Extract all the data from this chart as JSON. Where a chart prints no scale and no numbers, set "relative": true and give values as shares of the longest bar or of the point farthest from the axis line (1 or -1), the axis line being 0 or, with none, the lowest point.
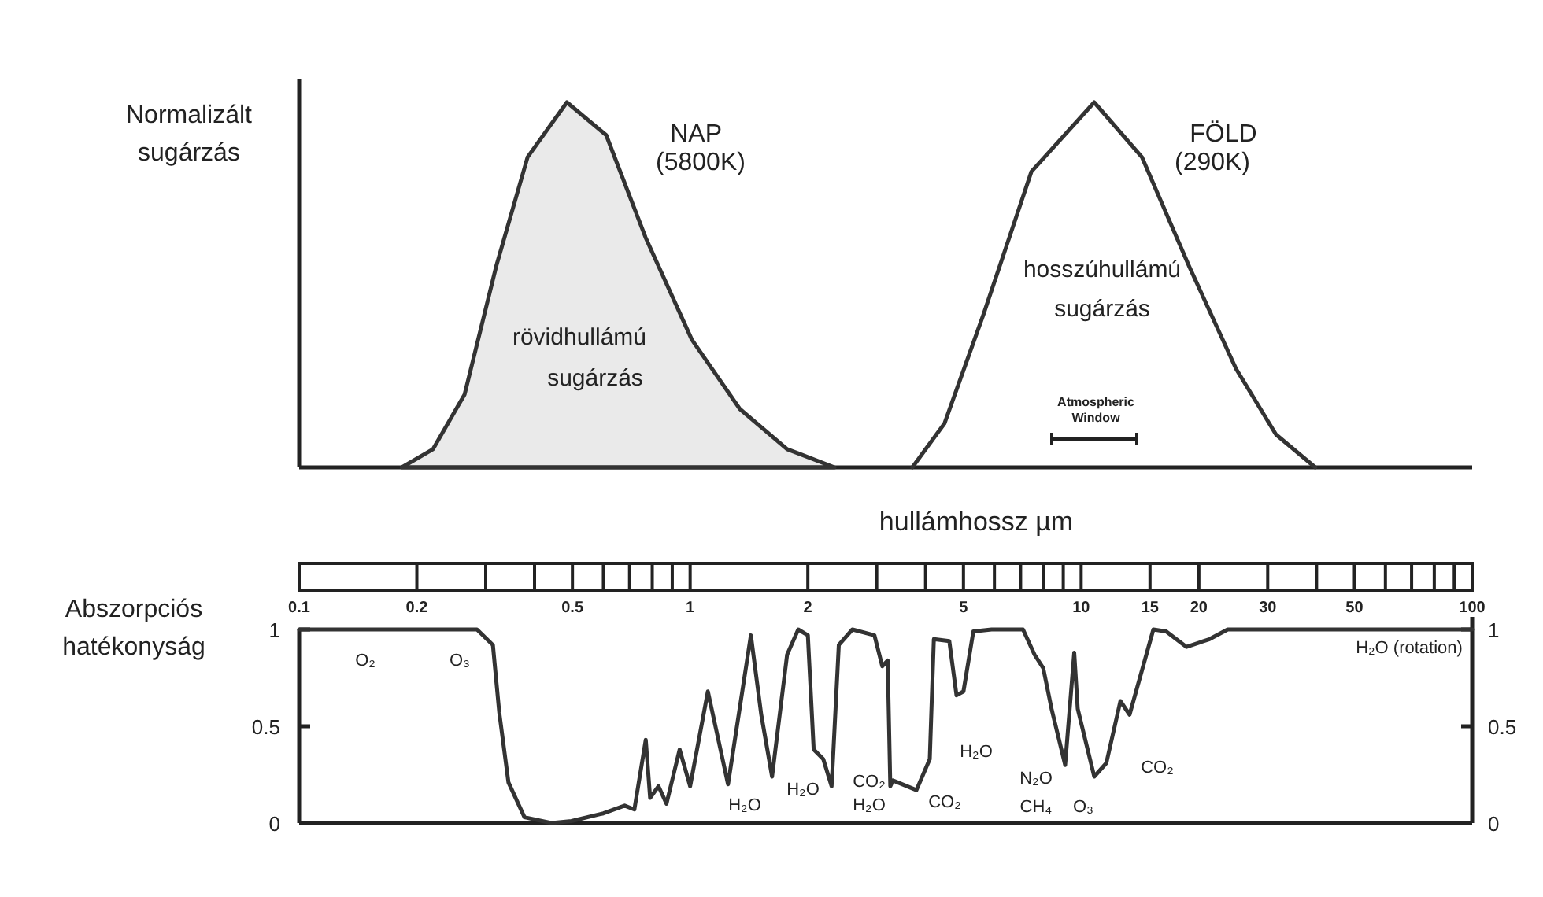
{
  "chart_data": [
    {
      "type": "line",
      "relative": true,
      "log": "x",
      "xlim": [
        0.1,
        100
      ],
      "tick_labels": "x",
      "ylabel": "Normalizált sugárzás",
      "xlabel": "hullámhossz µm",
      "xticks": [
        0.1,
        0.2,
        0.5,
        1,
        2,
        5,
        10,
        15,
        20,
        30,
        50,
        100
      ],
      "series": [
        {
          "name": "NAP",
          "type": "area",
          "color": "#333333",
          "x": [
            0.183,
            0.22,
            0.265,
            0.319,
            0.384,
            0.484,
            0.61,
            0.769,
            1.01,
            1.34,
            1.77,
            2.34
          ],
          "values": [
            0,
            0.05,
            0.2,
            0.55,
            0.85,
            1,
            0.91,
            0.63,
            0.35,
            0.16,
            0.05,
            0
          ]
        },
        {
          "name": "FÖLD",
          "color": "#333333",
          "x": [
            3.7,
            4.47,
            5.63,
            7.46,
            10.8,
            14.3,
            18.9,
            24.9,
            31.5,
            39.7
          ],
          "values": [
            0,
            0.12,
            0.42,
            0.81,
            1,
            0.85,
            0.55,
            0.27,
            0.09,
            0
          ]
        }
      ],
      "annotations": [
        "(5800K)",
        "(290K)",
        "rövidhullámú",
        "sugárzás",
        "hosszúhullámú",
        "sugárzás",
        "Atmospheric Window"
      ]
    },
    {
      "type": "line",
      "log": "x",
      "xlim": [
        0.1,
        100
      ],
      "ylim": [
        0,
        1
      ],
      "yticks": [
        0,
        0.5,
        1
      ],
      "y2lim": [
        0,
        1
      ],
      "y2ticks": [
        0,
        0.5,
        1
      ],
      "tick_labels": "y",
      "ylabel": "Abszorpciós hatékonyság",
      "series": [
        {
          "color": "#333333",
          "x": [
            0.1,
            0.285,
            0.313,
            0.325,
            0.343,
            0.377,
            0.442,
            0.497,
            0.6,
            0.68,
            0.72,
            0.77,
            0.79,
            0.83,
            0.87,
            0.94,
            1.0,
            1.11,
            1.25,
            1.43,
            1.52,
            1.62,
            1.77,
            1.89,
            2.0,
            2.07,
            2.19,
            2.3,
            2.4,
            2.6,
            2.96,
            3.1,
            3.2,
            3.25,
            3.3,
            3.79,
            4.1,
            4.2,
            4.6,
            4.8,
            5.0,
            5.3,
            5.9,
            7.1,
            7.6,
            8.0,
            8.4,
            9.1,
            9.6,
            9.8,
            10.8,
            11.6,
            12.6,
            13.3,
            15.3,
            16.5,
            18.6,
            21.3,
            23.7,
            100
          ],
          "values": [
            1,
            1,
            0.92,
            0.57,
            0.21,
            0.03,
            0,
            0.01,
            0.05,
            0.09,
            0.07,
            0.43,
            0.13,
            0.19,
            0.1,
            0.38,
            0.19,
            0.68,
            0.2,
            0.97,
            0.56,
            0.24,
            0.87,
            1,
            0.97,
            0.38,
            0.33,
            0.19,
            0.92,
            1,
            0.97,
            0.81,
            0.84,
            0.19,
            0.22,
            0.17,
            0.33,
            0.95,
            0.94,
            0.66,
            0.68,
            0.99,
            1,
            1,
            0.87,
            0.8,
            0.59,
            0.3,
            0.88,
            0.59,
            0.24,
            0.31,
            0.63,
            0.56,
            1,
            0.99,
            0.91,
            0.95,
            1,
            1
          ]
        }
      ],
      "annotations": [
        "O₂",
        "O₃",
        "H₂O (rotation)",
        "H₂O",
        "H₂O",
        "CO₂",
        "H₂O",
        "CO₂",
        "H₂O",
        "N₂O",
        "CH₄",
        "O₃",
        "CO₂"
      ]
    }
  ]
}
